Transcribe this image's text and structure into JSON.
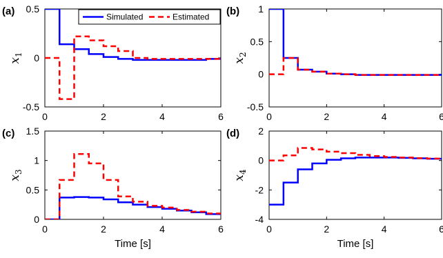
{
  "colors": {
    "simulated": "#0000ff",
    "estimated": "#ff0000"
  },
  "chart_data": [
    {
      "panel": "(a)",
      "type": "line",
      "step": true,
      "ylabel": "x",
      "ylabel_sub": "1",
      "xlabel": "",
      "xlim": [
        0,
        6
      ],
      "ylim": [
        -0.5,
        0.5
      ],
      "xticks": [
        "0",
        "2",
        "4",
        "6"
      ],
      "yticks": [
        "-0.5",
        "0",
        "0.5"
      ],
      "legend": {
        "placement": "top-right",
        "entries": [
          "Simulated",
          "Estimated"
        ]
      },
      "series": [
        {
          "name": "Simulated",
          "x": [
            0,
            0.5,
            1,
            1.5,
            2,
            2.5,
            3,
            3.5,
            4,
            4.5,
            5,
            5.5,
            6
          ],
          "y": [
            0.5,
            0.14,
            0.09,
            0.04,
            0.01,
            -0.01,
            -0.02,
            -0.02,
            -0.02,
            -0.02,
            -0.02,
            -0.01,
            -0.01
          ]
        },
        {
          "name": "Estimated",
          "x": [
            0,
            0.5,
            1,
            1.5,
            2,
            2.5,
            3,
            3.5,
            4,
            4.5,
            5,
            5.5,
            6
          ],
          "y": [
            0,
            -0.42,
            0.22,
            0.18,
            0.12,
            0.07,
            0.0,
            -0.01,
            -0.01,
            -0.01,
            -0.01,
            -0.01,
            -0.01
          ]
        }
      ]
    },
    {
      "panel": "(b)",
      "type": "line",
      "step": true,
      "ylabel": "x",
      "ylabel_sub": "2",
      "xlabel": "",
      "xlim": [
        0,
        6
      ],
      "ylim": [
        -0.5,
        1
      ],
      "xticks": [
        "0",
        "2",
        "4",
        "6"
      ],
      "yticks": [
        "-0.5",
        "0",
        "0.5",
        "1"
      ],
      "series": [
        {
          "name": "Simulated",
          "x": [
            0,
            0.5,
            1,
            1.5,
            2,
            2.5,
            3,
            3.5,
            4,
            4.5,
            5,
            5.5,
            6
          ],
          "y": [
            1.0,
            0.25,
            0.07,
            0.04,
            0.01,
            0.0,
            -0.01,
            -0.01,
            -0.01,
            -0.01,
            -0.01,
            -0.01,
            -0.01
          ]
        },
        {
          "name": "Estimated",
          "x": [
            0,
            0.5,
            1,
            1.5,
            2,
            2.5,
            3,
            3.5,
            4,
            4.5,
            5,
            5.5,
            6
          ],
          "y": [
            0,
            0.25,
            0.07,
            0.04,
            0.01,
            0.0,
            -0.01,
            -0.01,
            -0.01,
            -0.01,
            -0.01,
            -0.01,
            -0.01
          ]
        }
      ]
    },
    {
      "panel": "(c)",
      "type": "line",
      "step": true,
      "ylabel": "x",
      "ylabel_sub": "3",
      "xlabel": "Time [s]",
      "xlim": [
        0,
        6
      ],
      "ylim": [
        0,
        1.5
      ],
      "xticks": [
        "0",
        "2",
        "4",
        "6"
      ],
      "yticks": [
        "0",
        "0.5",
        "1",
        "1.5"
      ],
      "series": [
        {
          "name": "Simulated",
          "x": [
            0,
            0.5,
            1,
            1.5,
            2,
            2.5,
            3,
            3.5,
            4,
            4.5,
            5,
            5.5,
            6
          ],
          "y": [
            0,
            0.37,
            0.38,
            0.37,
            0.34,
            0.29,
            0.25,
            0.21,
            0.18,
            0.15,
            0.12,
            0.09,
            0.08
          ]
        },
        {
          "name": "Estimated",
          "x": [
            0,
            0.5,
            1,
            1.5,
            2,
            2.5,
            3,
            3.5,
            4,
            4.5,
            5,
            5.5,
            6
          ],
          "y": [
            0,
            0.67,
            1.11,
            0.95,
            0.67,
            0.39,
            0.3,
            0.23,
            0.2,
            0.16,
            0.13,
            0.1,
            0.08
          ]
        }
      ]
    },
    {
      "panel": "(d)",
      "type": "line",
      "step": true,
      "ylabel": "x",
      "ylabel_sub": "4",
      "xlabel": "Time [s]",
      "xlim": [
        0,
        6
      ],
      "ylim": [
        -4,
        2
      ],
      "xticks": [
        "0",
        "2",
        "4",
        "6"
      ],
      "yticks": [
        "-4",
        "-2",
        "0",
        "2"
      ],
      "series": [
        {
          "name": "Simulated",
          "x": [
            0,
            0.5,
            1,
            1.5,
            2,
            2.5,
            3,
            3.5,
            4,
            4.5,
            5,
            5.5,
            6
          ],
          "y": [
            -3.0,
            -1.5,
            -0.6,
            -0.2,
            0.05,
            0.15,
            0.2,
            0.2,
            0.2,
            0.18,
            0.15,
            0.12,
            0.1
          ]
        },
        {
          "name": "Estimated",
          "x": [
            0,
            0.5,
            1,
            1.5,
            2,
            2.5,
            3,
            3.5,
            4,
            4.5,
            5,
            5.5,
            6
          ],
          "y": [
            0,
            0.35,
            0.85,
            0.75,
            0.6,
            0.5,
            0.38,
            0.3,
            0.24,
            0.2,
            0.16,
            0.13,
            0.1
          ]
        }
      ]
    }
  ]
}
